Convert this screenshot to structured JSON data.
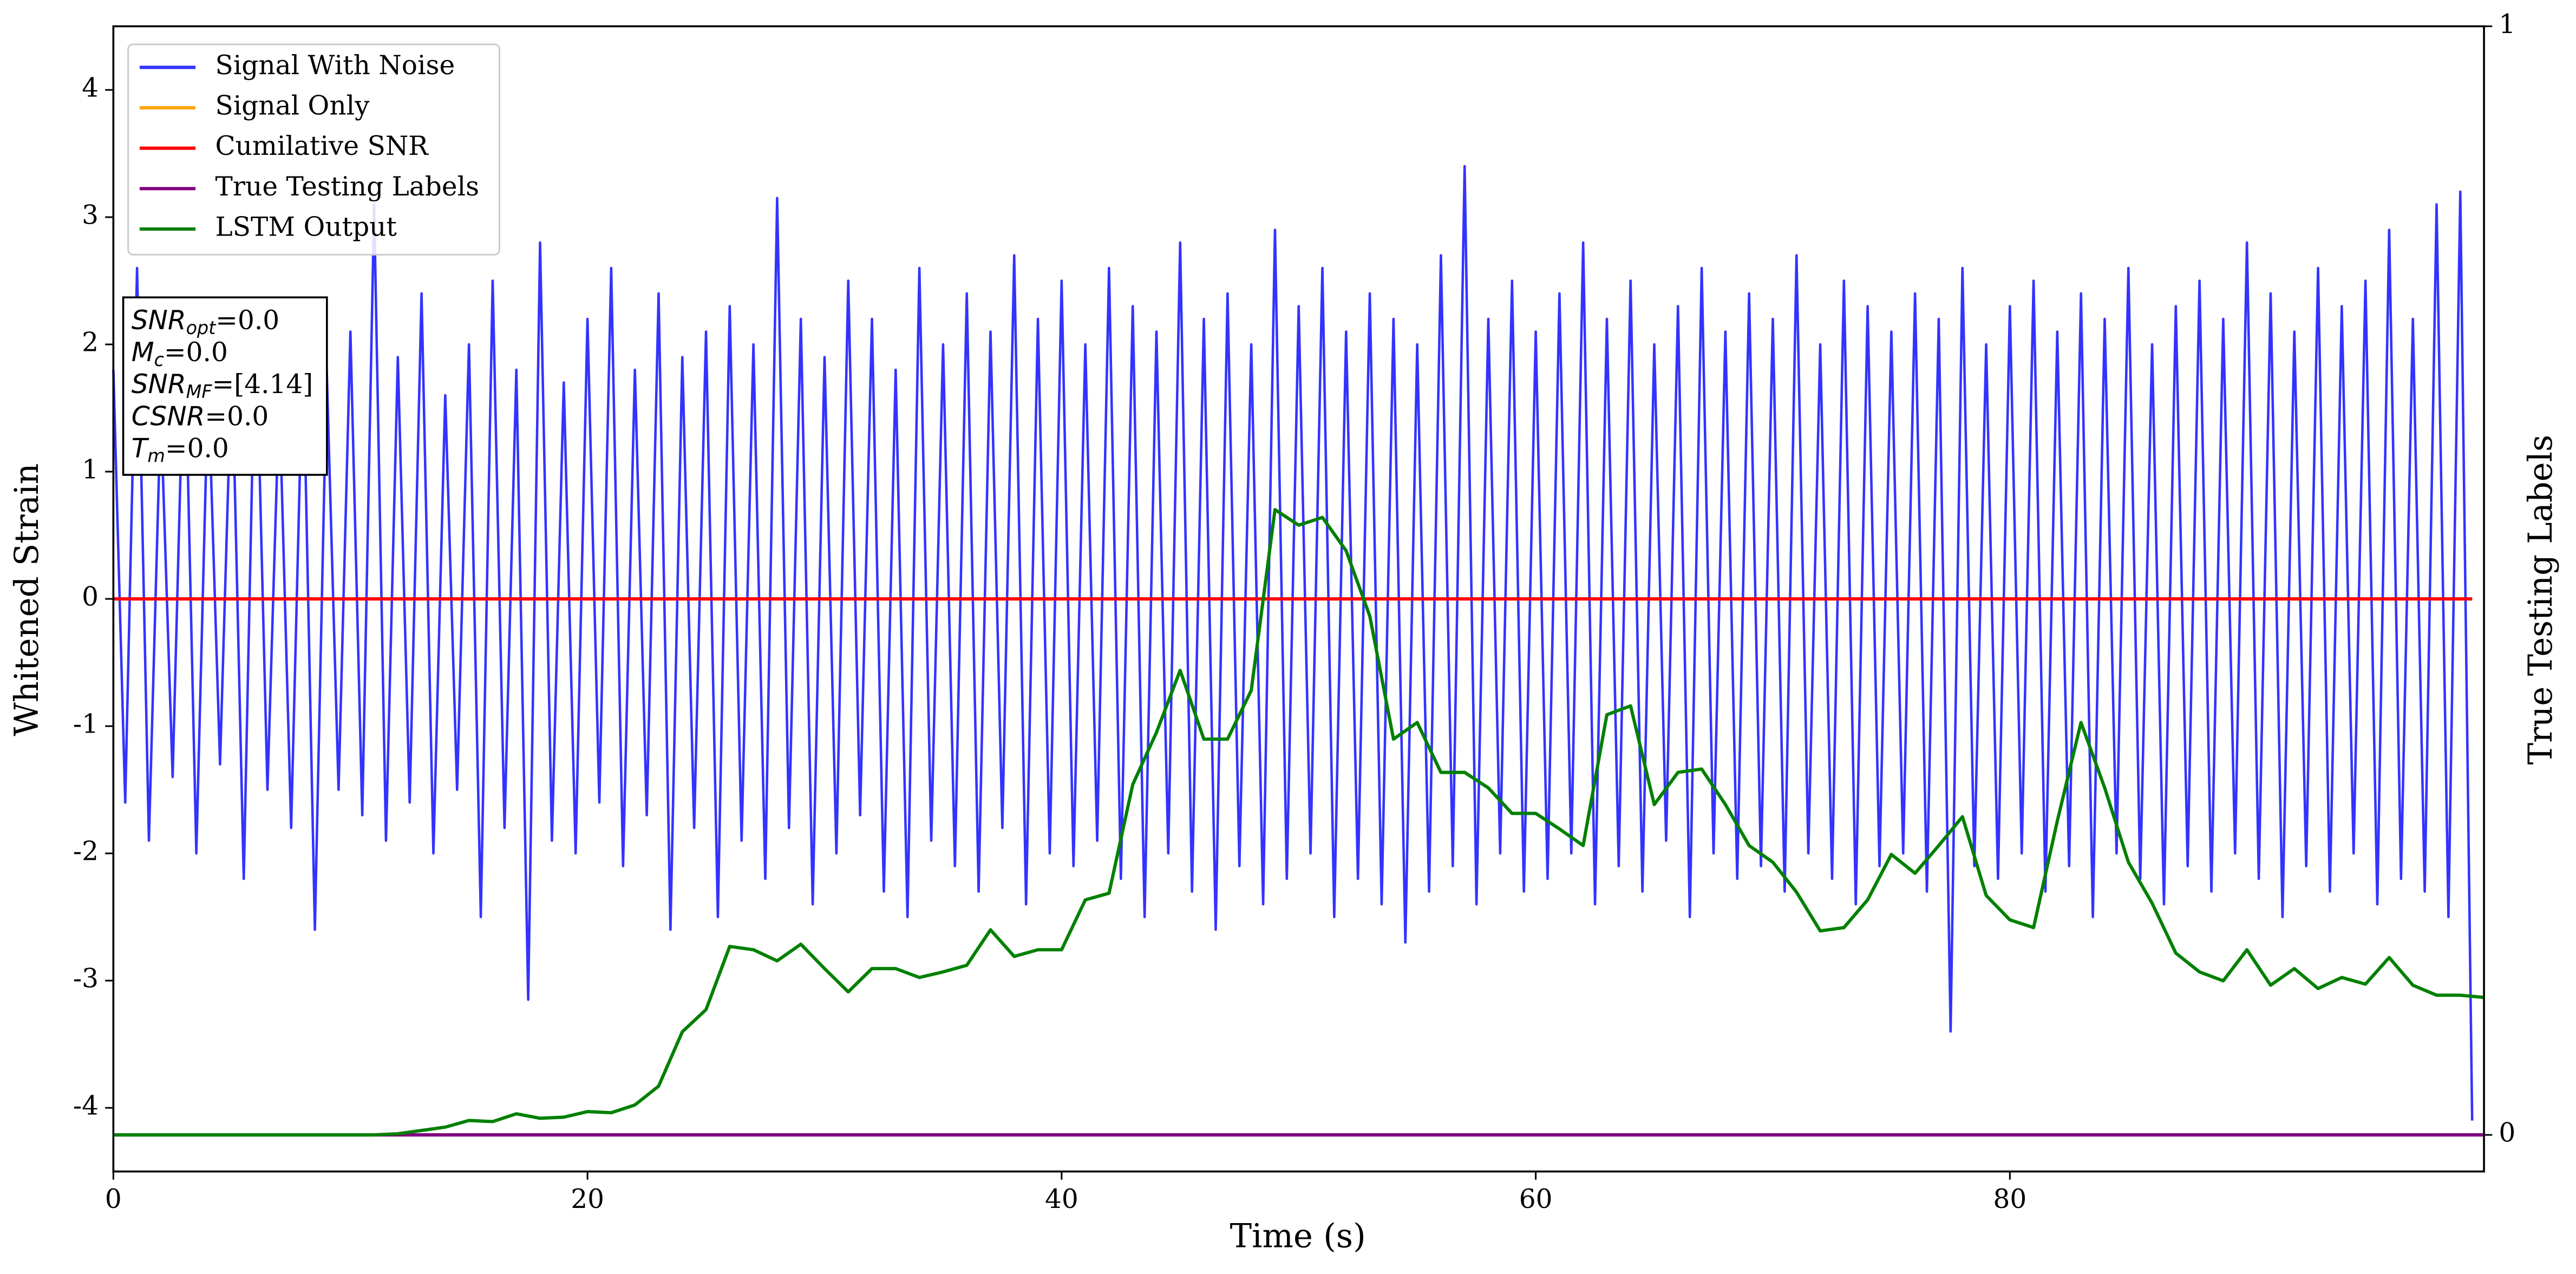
{
  "chart_data": {
    "type": "line",
    "xlabel": "Time (s)",
    "ylabel": "Whitened Strain",
    "y2label": "True Testing Labels",
    "xlim": [
      0,
      100
    ],
    "xticks": [
      0,
      20,
      40,
      60,
      80
    ],
    "ylim": [
      -4.5,
      4.5
    ],
    "yticks": [
      -4,
      -3,
      -2,
      -1,
      0,
      1,
      2,
      3,
      4
    ],
    "y2lim": [
      -0.033,
      1
    ],
    "y2ticks": [
      0,
      1
    ],
    "legend": "upper left",
    "annotation": [
      {
        "name": "SNR",
        "sub": "opt",
        "text": "=0.0"
      },
      {
        "name": "M",
        "sub": "c",
        "text": "=0.0"
      },
      {
        "name": "SNR",
        "sub": "MF",
        "text": "=[4.14]"
      },
      {
        "name": "CSNR",
        "text": "=0.0"
      },
      {
        "name": "T",
        "sub": "m",
        "text": "=0.0"
      }
    ],
    "series": [
      {
        "name": "Signal With Noise",
        "color": "#3333ff",
        "x": [
          0,
          0.5,
          1,
          1.5,
          2,
          2.5,
          3,
          3.5,
          4,
          4.5,
          5,
          5.5,
          6,
          6.5,
          7,
          7.5,
          8,
          8.5,
          9,
          9.5,
          10,
          10.5,
          11,
          11.5,
          12,
          12.5,
          13,
          13.5,
          14,
          14.5,
          15,
          15.5,
          16,
          16.5,
          17,
          17.5,
          18,
          18.5,
          19,
          19.5,
          20,
          20.5,
          21,
          21.5,
          22,
          22.5,
          23,
          23.5,
          24,
          24.5,
          25,
          25.5,
          26,
          26.5,
          27,
          27.5,
          28,
          28.5,
          29,
          29.5,
          30,
          30.5,
          31,
          31.5,
          32,
          32.5,
          33,
          33.5,
          34,
          34.5,
          35,
          35.5,
          36,
          36.5,
          37,
          37.5,
          38,
          38.5,
          39,
          39.5,
          40,
          40.5,
          41,
          41.5,
          42,
          42.5,
          43,
          43.5,
          44,
          44.5,
          45,
          45.5,
          46,
          46.5,
          47,
          47.5,
          48,
          48.5,
          49,
          49.5,
          50,
          50.5,
          51,
          51.5,
          52,
          52.5,
          53,
          53.5,
          54,
          54.5,
          55,
          55.5,
          56,
          56.5,
          57,
          57.5,
          58,
          58.5,
          59,
          59.5,
          60,
          60.5,
          61,
          61.5,
          62,
          62.5,
          63,
          63.5,
          64,
          64.5,
          65,
          65.5,
          66,
          66.5,
          67,
          67.5,
          68,
          68.5,
          69,
          69.5,
          70,
          70.5,
          71,
          71.5,
          72,
          72.5,
          73,
          73.5,
          74,
          74.5,
          75,
          75.5,
          76,
          76.5,
          77,
          77.5,
          78,
          78.5,
          79,
          79.5,
          80,
          80.5,
          81,
          81.5,
          82,
          82.5,
          83,
          83.5,
          84,
          84.5,
          85,
          85.5,
          86,
          86.5,
          87,
          87.5,
          88,
          88.5,
          89,
          89.5,
          90,
          90.5,
          91,
          91.5,
          92,
          92.5,
          93,
          93.5,
          94,
          94.5,
          95,
          95.5,
          96,
          96.5,
          97,
          97.5,
          98,
          98.5,
          99,
          99.5
        ],
        "values": [
          1.8,
          -1.6,
          2.6,
          -1.9,
          1.5,
          -1.4,
          2.2,
          -2.0,
          1.7,
          -1.3,
          1.9,
          -2.2,
          2.3,
          -1.5,
          1.6,
          -1.8,
          2.0,
          -2.6,
          1.8,
          -1.5,
          2.1,
          -1.7,
          3.1,
          -1.9,
          1.9,
          -1.6,
          2.4,
          -2.0,
          1.6,
          -1.5,
          2.0,
          -2.5,
          2.5,
          -1.8,
          1.8,
          -3.15,
          2.8,
          -1.9,
          1.7,
          -2.0,
          2.2,
          -1.6,
          2.6,
          -2.1,
          1.8,
          -1.7,
          2.4,
          -2.6,
          1.9,
          -1.8,
          2.1,
          -2.5,
          2.3,
          -1.9,
          2.0,
          -2.2,
          3.15,
          -1.8,
          2.2,
          -2.4,
          1.9,
          -2.0,
          2.5,
          -1.7,
          2.2,
          -2.3,
          1.8,
          -2.5,
          2.6,
          -1.9,
          2.0,
          -2.1,
          2.4,
          -2.3,
          2.1,
          -1.8,
          2.7,
          -2.4,
          2.2,
          -2.0,
          2.5,
          -2.1,
          2.0,
          -1.9,
          2.6,
          -2.2,
          2.3,
          -2.5,
          2.1,
          -2.0,
          2.8,
          -2.3,
          2.2,
          -2.6,
          2.4,
          -2.1,
          2.0,
          -2.4,
          2.9,
          -2.2,
          2.3,
          -2.0,
          2.6,
          -2.5,
          2.1,
          -2.2,
          2.4,
          -2.4,
          2.2,
          -2.7,
          2.0,
          -2.3,
          2.7,
          -2.1,
          3.4,
          -2.4,
          2.2,
          -2.0,
          2.5,
          -2.3,
          2.1,
          -2.2,
          2.4,
          -2.0,
          2.8,
          -2.4,
          2.2,
          -2.1,
          2.5,
          -2.3,
          2.0,
          -1.9,
          2.3,
          -2.5,
          2.6,
          -2.0,
          2.1,
          -2.2,
          2.4,
          -2.1,
          2.2,
          -2.3,
          2.7,
          -2.0,
          2.0,
          -2.2,
          2.5,
          -2.4,
          2.3,
          -2.1,
          2.1,
          -2.0,
          2.4,
          -2.3,
          2.2,
          -3.4,
          2.6,
          -2.1,
          2.0,
          -2.2,
          2.3,
          -2.0,
          2.5,
          -2.3,
          2.1,
          -2.1,
          2.4,
          -2.5,
          2.2,
          -2.0,
          2.6,
          -2.2,
          2.0,
          -2.4,
          2.3,
          -2.1,
          2.5,
          -2.3,
          2.2,
          -2.0,
          2.8,
          -2.2,
          2.4,
          -2.5,
          2.1,
          -2.1,
          2.6,
          -2.3,
          2.3,
          -2.0,
          2.5,
          -2.4,
          2.9,
          -2.2,
          2.2,
          -2.3,
          3.1,
          -2.5,
          3.2,
          -4.1
        ]
      },
      {
        "name": "Signal Only",
        "color": "#ffa500",
        "x": [
          0,
          99.5
        ],
        "values": [
          0,
          0
        ]
      },
      {
        "name": "Cumilative SNR",
        "color": "#ff0000",
        "x": [
          0,
          99.5
        ],
        "values": [
          0,
          0
        ]
      },
      {
        "name": "True Testing Labels",
        "color": "#800080",
        "axis": "y2",
        "x": [
          0,
          100
        ],
        "values": [
          0,
          0
        ]
      },
      {
        "name": "LSTM Output",
        "color": "#008000",
        "axis": "y2",
        "x": [
          0,
          1,
          2,
          3,
          4,
          5,
          6,
          7,
          8,
          9,
          10,
          11,
          12,
          13,
          14,
          15,
          16,
          17,
          18,
          19,
          20,
          21,
          22,
          23,
          24,
          25,
          26,
          27,
          28,
          29,
          30,
          31,
          32,
          33,
          34,
          35,
          36,
          37,
          38,
          39,
          40,
          41,
          42,
          43,
          44,
          45,
          46,
          47,
          48,
          49,
          50,
          51,
          52,
          53,
          54,
          55,
          56,
          57,
          58,
          59,
          60,
          61,
          62,
          63,
          64,
          65,
          66,
          67,
          68,
          69,
          70,
          71,
          72,
          73,
          74,
          75,
          76,
          77,
          78,
          79,
          80,
          81,
          82,
          83,
          84,
          85,
          86,
          87,
          88,
          89,
          90,
          91,
          92,
          93,
          94,
          95,
          96,
          97,
          98,
          99,
          100
        ],
        "values": [
          0,
          0,
          0,
          0,
          0,
          0,
          0,
          0,
          0,
          0,
          0,
          0,
          0.001,
          0.004,
          0.007,
          0.013,
          0.012,
          0.019,
          0.015,
          0.016,
          0.021,
          0.02,
          0.027,
          0.044,
          0.093,
          0.113,
          0.17,
          0.167,
          0.157,
          0.172,
          0.15,
          0.129,
          0.15,
          0.15,
          0.142,
          0.147,
          0.153,
          0.185,
          0.161,
          0.167,
          0.167,
          0.212,
          0.218,
          0.316,
          0.363,
          0.419,
          0.357,
          0.357,
          0.401,
          0.564,
          0.55,
          0.557,
          0.527,
          0.468,
          0.357,
          0.372,
          0.327,
          0.327,
          0.313,
          0.29,
          0.29,
          0.276,
          0.261,
          0.379,
          0.387,
          0.298,
          0.327,
          0.33,
          0.298,
          0.261,
          0.246,
          0.219,
          0.184,
          0.187,
          0.212,
          0.253,
          0.236,
          0.261,
          0.287,
          0.216,
          0.194,
          0.187,
          0.283,
          0.372,
          0.313,
          0.246,
          0.209,
          0.164,
          0.147,
          0.139,
          0.167,
          0.135,
          0.15,
          0.132,
          0.142,
          0.136,
          0.16,
          0.135,
          0.126,
          0.126,
          0.124
        ]
      }
    ]
  }
}
